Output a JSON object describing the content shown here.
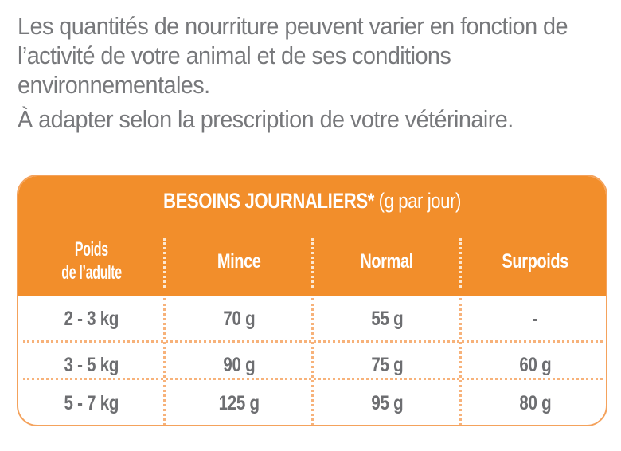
{
  "intro": {
    "paragraph_1_lines": [
      "Les quantités de nourriture peuvent varier en fonction de",
      "l’activité de votre animal et de ses conditions",
      "environnementales."
    ],
    "paragraph_2": "À adapter selon la prescription de votre vétérinaire."
  },
  "table": {
    "title_bold": "BESOINS JOURNALIERS*",
    "title_unit": " (g par jour)",
    "headers": {
      "weight_line1": "Poids",
      "weight_line2": "de l’adulte",
      "mince": "Mince",
      "normal": "Normal",
      "surpoids": "Surpoids"
    },
    "rows": [
      {
        "weight": "2 - 3 kg",
        "mince": "70 g",
        "normal": "55 g",
        "surpoids": "-"
      },
      {
        "weight": "3 - 5 kg",
        "mince": "90 g",
        "normal": "75 g",
        "surpoids": "60 g"
      },
      {
        "weight": "5 - 7 kg",
        "mince": "125 g",
        "normal": "95 g",
        "surpoids": "80 g"
      }
    ]
  },
  "colors": {
    "accent_orange": "#f28e2b",
    "border_orange": "#f4a25c",
    "text_gray": "#6d6e71"
  }
}
